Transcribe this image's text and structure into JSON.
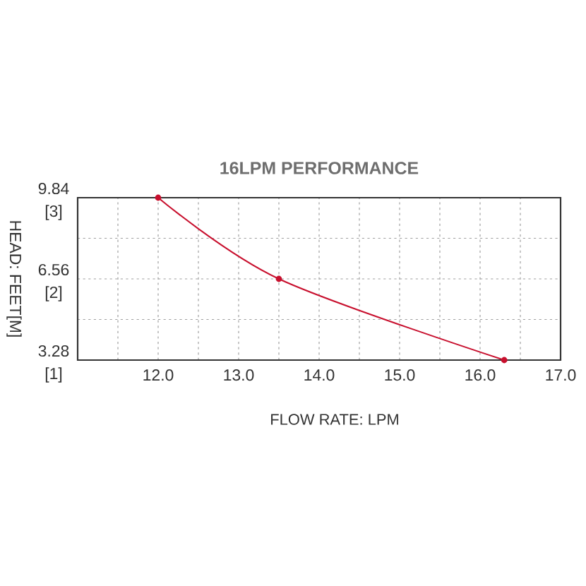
{
  "chart_data": {
    "type": "line",
    "title": "16LPM PERFORMANCE",
    "xlabel": "FLOW RATE: LPM",
    "y2label": "HEAD: FEET[M]",
    "x": [
      12.0,
      13.5,
      16.3
    ],
    "values": [
      9.84,
      6.56,
      3.28
    ],
    "color": "#c8102e",
    "marker": "circle",
    "line_style": "solid",
    "grid": true,
    "xlim": [
      11,
      17
    ],
    "ylim": [
      3.28,
      9.84
    ],
    "y2lim": [
      1,
      3
    ],
    "xticks": [
      {
        "value": 11.5,
        "label": null
      },
      {
        "value": 12,
        "label": "12.0"
      },
      {
        "value": 12.5,
        "label": null
      },
      {
        "value": 13,
        "label": "13.0"
      },
      {
        "value": 13.5,
        "label": null
      },
      {
        "value": 14,
        "label": "14.0"
      },
      {
        "value": 14.5,
        "label": null
      },
      {
        "value": 15,
        "label": "15.0"
      },
      {
        "value": 15.5,
        "label": null
      },
      {
        "value": 16,
        "label": "16.0"
      },
      {
        "value": 16.5,
        "label": null
      },
      {
        "value": 17,
        "label": "17.0"
      }
    ],
    "yticks": [
      3.28,
      {
        "value": 4.92,
        "label": null
      },
      6.56,
      {
        "value": 8.2,
        "label": null
      },
      9.84
    ],
    "y2ticks": [
      {
        "value": 1,
        "label": "[1]"
      },
      {
        "value": 2,
        "label": "[2]"
      },
      {
        "value": 3,
        "label": "[3]"
      }
    ]
  }
}
